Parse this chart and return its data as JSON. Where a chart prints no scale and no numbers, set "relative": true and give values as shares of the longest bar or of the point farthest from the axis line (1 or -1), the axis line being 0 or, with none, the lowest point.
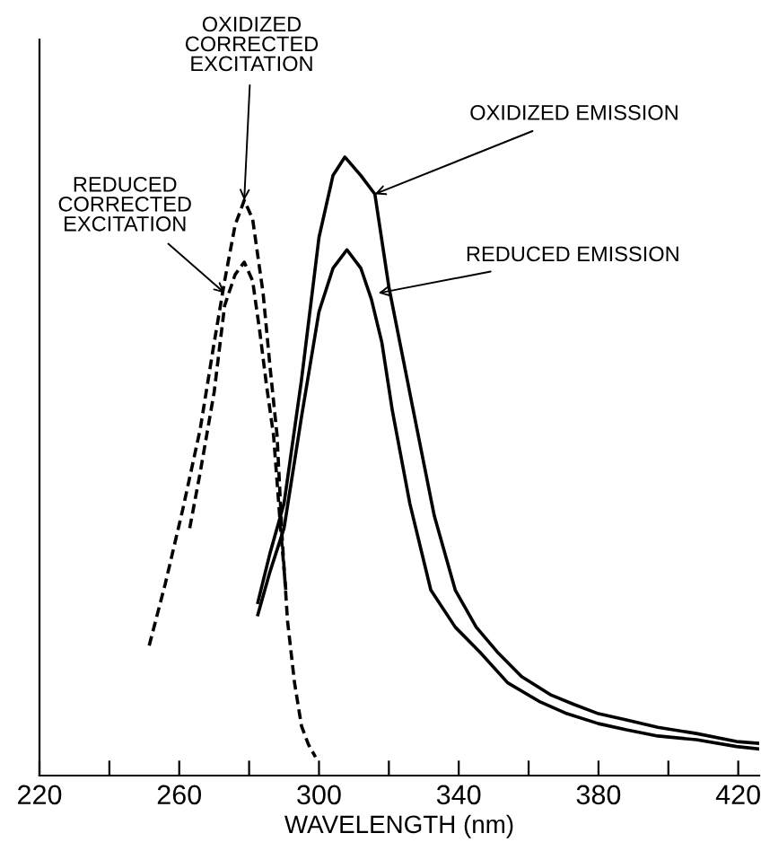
{
  "chart_data": {
    "type": "line",
    "relative": true,
    "xlabel": "WAVELENGTH (nm)",
    "xlim": [
      220,
      426
    ],
    "xticks": [
      220,
      {
        "value": 240,
        "label": null
      },
      260,
      {
        "value": 280,
        "label": null
      },
      300,
      {
        "value": 320,
        "label": null
      },
      340,
      {
        "value": 360,
        "label": null
      },
      380,
      {
        "value": 400,
        "label": null
      },
      420
    ],
    "tick_labels": "x",
    "grid": false,
    "marker": "none",
    "series": [
      {
        "color": "#000000",
        "line_style": "dashed",
        "x": [
          251.4,
          256,
          261,
          266,
          270,
          273,
          276,
          278.6,
          281,
          284,
          286,
          288,
          289.5,
          291,
          293,
          295,
          297,
          299
        ],
        "values": [
          0.21,
          0.31,
          0.43,
          0.56,
          0.7,
          0.8,
          0.89,
          0.93,
          0.9,
          0.78,
          0.66,
          0.55,
          0.38,
          0.25,
          0.15,
          0.08,
          0.05,
          0.03
        ]
      },
      {
        "color": "#000000",
        "line_style": "dashed",
        "x": [
          263,
          266,
          270,
          273,
          276,
          278.6,
          281,
          283,
          285,
          287,
          289,
          290.5
        ],
        "values": [
          0.4,
          0.49,
          0.62,
          0.76,
          0.81,
          0.83,
          0.8,
          0.72,
          0.63,
          0.55,
          0.4,
          0.3
        ]
      },
      {
        "color": "#000000",
        "line_style": "solid",
        "x": [
          282.5,
          286,
          290,
          295,
          300,
          304,
          307.4,
          312,
          316,
          320,
          327,
          333,
          339,
          345,
          351,
          358,
          366.5,
          373,
          380,
          388,
          397,
          408,
          419.5,
          426
        ],
        "values": [
          0.28,
          0.36,
          0.44,
          0.64,
          0.87,
          0.97,
          1.0,
          0.97,
          0.94,
          0.79,
          0.59,
          0.42,
          0.3,
          0.24,
          0.2,
          0.16,
          0.13,
          0.115,
          0.1,
          0.09,
          0.078,
          0.068,
          0.055,
          0.052
        ]
      },
      {
        "color": "#000000",
        "line_style": "solid",
        "x": [
          282.5,
          286,
          290,
          295,
          300,
          304,
          308,
          312,
          315,
          318,
          321,
          326,
          332,
          339,
          346,
          354,
          363,
          371,
          380,
          388,
          397,
          408,
          419.5,
          426
        ],
        "values": [
          0.26,
          0.33,
          0.4,
          0.58,
          0.75,
          0.82,
          0.85,
          0.82,
          0.77,
          0.7,
          0.59,
          0.44,
          0.3,
          0.24,
          0.2,
          0.15,
          0.12,
          0.1,
          0.084,
          0.074,
          0.064,
          0.058,
          0.047,
          0.043
        ]
      }
    ],
    "annotations": [
      {
        "text": "OXIDIZED\nCORRECTED\nEXCITATION",
        "x": 278.6,
        "y": 0.93
      },
      {
        "text": "REDUCED\nCORRECTED\nEXCITATION",
        "x": 273,
        "y": 0.78
      },
      {
        "text": "OXIDIZED EMISSION",
        "x": 316,
        "y": 0.94
      },
      {
        "text": "REDUCED EMISSION",
        "x": 317,
        "y": 0.78
      }
    ]
  }
}
